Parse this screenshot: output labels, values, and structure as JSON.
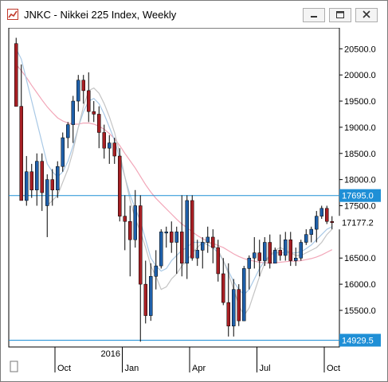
{
  "window": {
    "title": "JNKC - Nikkei 225 Index, Weekly",
    "buttons": [
      "minimize",
      "maximize",
      "close"
    ]
  },
  "chart_data": {
    "type": "candlestick",
    "title": "",
    "y_ticks": [
      "20500.0",
      "20000.0",
      "19500.0",
      "19000.0",
      "18500.0",
      "18000.0",
      "17500.0",
      "16500.0",
      "16000.0",
      "15500.0"
    ],
    "y_tick_values": [
      20500,
      20000,
      19500,
      19000,
      18500,
      18000,
      17500,
      16500,
      16000,
      15500
    ],
    "x_labels": [
      "Oct",
      "Jan",
      "Apr",
      "Jul",
      "Oct"
    ],
    "year_label": "2016",
    "ylim": [
      14800,
      20900
    ],
    "horizontal_lines": [
      {
        "value": 17695.0,
        "label": "17695.0"
      },
      {
        "value": 14929.5,
        "label": "14929.5"
      }
    ],
    "last_price": {
      "value": 17177.2,
      "label": "17177.2"
    },
    "candles": [
      [
        20600,
        20710,
        19450,
        19400
      ],
      [
        19400,
        20200,
        17650,
        17600
      ],
      [
        17600,
        18450,
        17500,
        18150
      ],
      [
        18150,
        18300,
        17650,
        17800
      ],
      [
        17800,
        18500,
        17500,
        18350
      ],
      [
        18350,
        18500,
        17400,
        17750
      ],
      [
        17500,
        18100,
        16900,
        18000
      ],
      [
        18000,
        18200,
        17500,
        17800
      ],
      [
        17800,
        18350,
        17650,
        18250
      ],
      [
        18250,
        18900,
        18150,
        18800
      ],
      [
        18800,
        19100,
        18600,
        19050
      ],
      [
        19050,
        19600,
        18700,
        19500
      ],
      [
        19500,
        20000,
        19300,
        19900
      ],
      [
        19900,
        20000,
        19450,
        19700
      ],
      [
        19700,
        20050,
        19100,
        19300
      ],
      [
        19300,
        19500,
        19100,
        19250
      ],
      [
        19250,
        19400,
        18600,
        18900
      ],
      [
        18900,
        19050,
        18400,
        18600
      ],
      [
        18600,
        18850,
        18300,
        18700
      ],
      [
        18700,
        18800,
        18300,
        18450
      ],
      [
        18450,
        18600,
        17200,
        17300
      ],
      [
        17300,
        17700,
        16650,
        17200
      ],
      [
        17200,
        17500,
        16150,
        16850
      ],
      [
        16850,
        17800,
        16700,
        17500
      ],
      [
        17500,
        17700,
        14900,
        16000
      ],
      [
        16000,
        16450,
        15250,
        15400
      ],
      [
        15400,
        16400,
        15300,
        16150
      ],
      [
        16150,
        16650,
        15900,
        16350
      ],
      [
        16350,
        17050,
        16300,
        17000
      ],
      [
        17000,
        17100,
        16700,
        17000
      ],
      [
        17000,
        17200,
        16600,
        16800
      ],
      [
        16800,
        17100,
        16200,
        17000
      ],
      [
        17000,
        17700,
        16150,
        16400
      ],
      [
        16400,
        17700,
        16100,
        17600
      ],
      [
        17600,
        17700,
        16450,
        16500
      ],
      [
        16500,
        16850,
        16350,
        16650
      ],
      [
        16650,
        16900,
        16300,
        16800
      ],
      [
        16800,
        17100,
        16600,
        16900
      ],
      [
        16900,
        17050,
        16400,
        16700
      ],
      [
        16700,
        16850,
        16050,
        16200
      ],
      [
        16200,
        16500,
        15600,
        15650
      ],
      [
        15650,
        16400,
        15000,
        15200
      ],
      [
        15200,
        16100,
        15000,
        15900
      ],
      [
        15900,
        16000,
        15200,
        15300
      ],
      [
        15300,
        16350,
        15300,
        16300
      ],
      [
        16300,
        16550,
        15900,
        16500
      ],
      [
        16500,
        16900,
        16300,
        16600
      ],
      [
        16600,
        16850,
        16150,
        16450
      ],
      [
        16450,
        16900,
        16350,
        16800
      ],
      [
        16800,
        16950,
        16300,
        16400
      ],
      [
        16400,
        16700,
        16400,
        16650
      ],
      [
        16650,
        16950,
        16450,
        16550
      ],
      [
        16550,
        17000,
        16450,
        16850
      ],
      [
        16850,
        17000,
        16350,
        16450
      ],
      [
        16450,
        16700,
        16350,
        16500
      ],
      [
        16500,
        16850,
        16450,
        16800
      ],
      [
        16800,
        17050,
        16750,
        16950
      ],
      [
        16950,
        17100,
        16800,
        17050
      ],
      [
        17050,
        17400,
        16800,
        17300
      ],
      [
        17300,
        17500,
        17250,
        17450
      ],
      [
        17450,
        17500,
        17150,
        17200
      ],
      [
        17200,
        17300,
        17050,
        17177
      ]
    ],
    "moving_averages": [
      {
        "color": "#f2a6b8",
        "values": [
          20200,
          20080,
          19950,
          19800,
          19660,
          19520,
          19390,
          19280,
          19180,
          19120,
          19080,
          19060,
          19060,
          19080,
          19080,
          19060,
          19020,
          18960,
          18880,
          18780,
          18650,
          18500,
          18360,
          18220,
          18060,
          17900,
          17760,
          17640,
          17540,
          17440,
          17340,
          17240,
          17150,
          17080,
          17000,
          16930,
          16870,
          16820,
          16780,
          16740,
          16700,
          16640,
          16580,
          16530,
          16490,
          16460,
          16440,
          16420,
          16410,
          16400,
          16410,
          16420,
          16430,
          16440,
          16440,
          16450,
          16470,
          16490,
          16520,
          16560,
          16610,
          16660
        ]
      },
      {
        "color": "#a9c9e6",
        "values": [
          20500,
          20300,
          19900,
          19500,
          19100,
          18700,
          18300,
          18150,
          18050,
          18150,
          18350,
          18650,
          19000,
          19300,
          19500,
          19550,
          19450,
          19250,
          19000,
          18750,
          18400,
          18050,
          17700,
          17450,
          17200,
          16850,
          16500,
          16350,
          16250,
          16300,
          16450,
          16550,
          16650,
          16700,
          16800,
          16800,
          16800,
          16750,
          16700,
          16600,
          16450,
          16250,
          16050,
          15900,
          15800,
          15900,
          16100,
          16300,
          16450,
          16550,
          16600,
          16600,
          16600,
          16600,
          16600,
          16620,
          16680,
          16750,
          16850,
          16950,
          17050,
          17100
        ]
      },
      {
        "color": "#c4c4c4",
        "values": [
          null,
          null,
          null,
          null,
          null,
          null,
          17500,
          17600,
          17700,
          17950,
          18200,
          18550,
          19000,
          19400,
          19700,
          19750,
          19650,
          19450,
          19200,
          18900,
          18500,
          18050,
          17600,
          17250,
          17000,
          16700,
          16350,
          16150,
          15900,
          15950,
          16100,
          16200,
          16350,
          16450,
          16600,
          16700,
          16800,
          16800,
          16750,
          16650,
          16450,
          16200,
          15900,
          15600,
          15400,
          15550,
          15850,
          16150,
          16400,
          16550,
          16650,
          16700,
          16650,
          16600,
          16550,
          16550,
          16600,
          16650,
          16700,
          16800,
          16950,
          17050
        ]
      }
    ],
    "colors": {
      "up": "#1f5fa8",
      "down": "#a61f24",
      "hline": "#1f8fd6",
      "price_tag": "#1f5fa8",
      "grid": "#d4d4d4"
    }
  }
}
